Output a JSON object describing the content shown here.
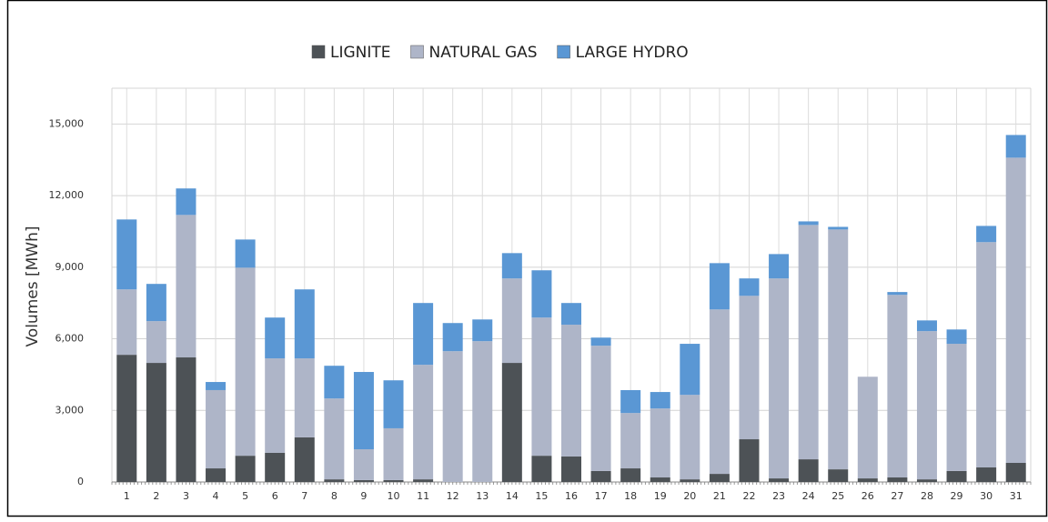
{
  "chart_data": {
    "type": "bar",
    "stacked": true,
    "y_label": "Volumes [MWh]",
    "categories": [
      "1",
      "2",
      "3",
      "4",
      "5",
      "6",
      "7",
      "8",
      "9",
      "10",
      "11",
      "12",
      "13",
      "14",
      "15",
      "16",
      "17",
      "18",
      "19",
      "20",
      "21",
      "22",
      "23",
      "24",
      "25",
      "26",
      "27",
      "28",
      "29",
      "30",
      "31"
    ],
    "series": [
      {
        "name": "LIGNITE",
        "color": "#4d5256",
        "values": [
          5330,
          4990,
          5220,
          570,
          1100,
          1220,
          1870,
          110,
          80,
          80,
          110,
          0,
          0,
          4990,
          1100,
          1070,
          460,
          570,
          190,
          110,
          340,
          1790,
          150,
          950,
          530,
          150,
          190,
          110,
          460,
          610,
          800
        ]
      },
      {
        "name": "NATURAL GAS",
        "color": "#aeb5c8",
        "values": [
          2740,
          1750,
          5970,
          3280,
          7880,
          3960,
          3310,
          3390,
          1290,
          2170,
          4800,
          5480,
          5900,
          3540,
          5790,
          5520,
          5250,
          2320,
          2890,
          3540,
          6890,
          6010,
          8380,
          9820,
          10050,
          4260,
          7650,
          6210,
          5330,
          9440,
          12790
        ]
      },
      {
        "name": "LARGE HYDRO",
        "color": "#5a97d4",
        "values": [
          2930,
          1560,
          1110,
          340,
          1180,
          1710,
          2890,
          1370,
          3240,
          2010,
          2590,
          1180,
          910,
          1060,
          1980,
          910,
          340,
          960,
          690,
          2140,
          1940,
          730,
          1020,
          150,
          110,
          0,
          120,
          450,
          600,
          680,
          950
        ]
      }
    ],
    "ylim": [
      0,
      16500
    ],
    "yticks": [
      0,
      {
        "value": 3000,
        "label": "3,000"
      },
      {
        "value": 6000,
        "label": "6,000"
      },
      {
        "value": 9000,
        "label": "9,000"
      },
      {
        "value": 12000,
        "label": "12,000"
      },
      {
        "value": 15000,
        "label": "15,000"
      }
    ],
    "grid": true
  }
}
